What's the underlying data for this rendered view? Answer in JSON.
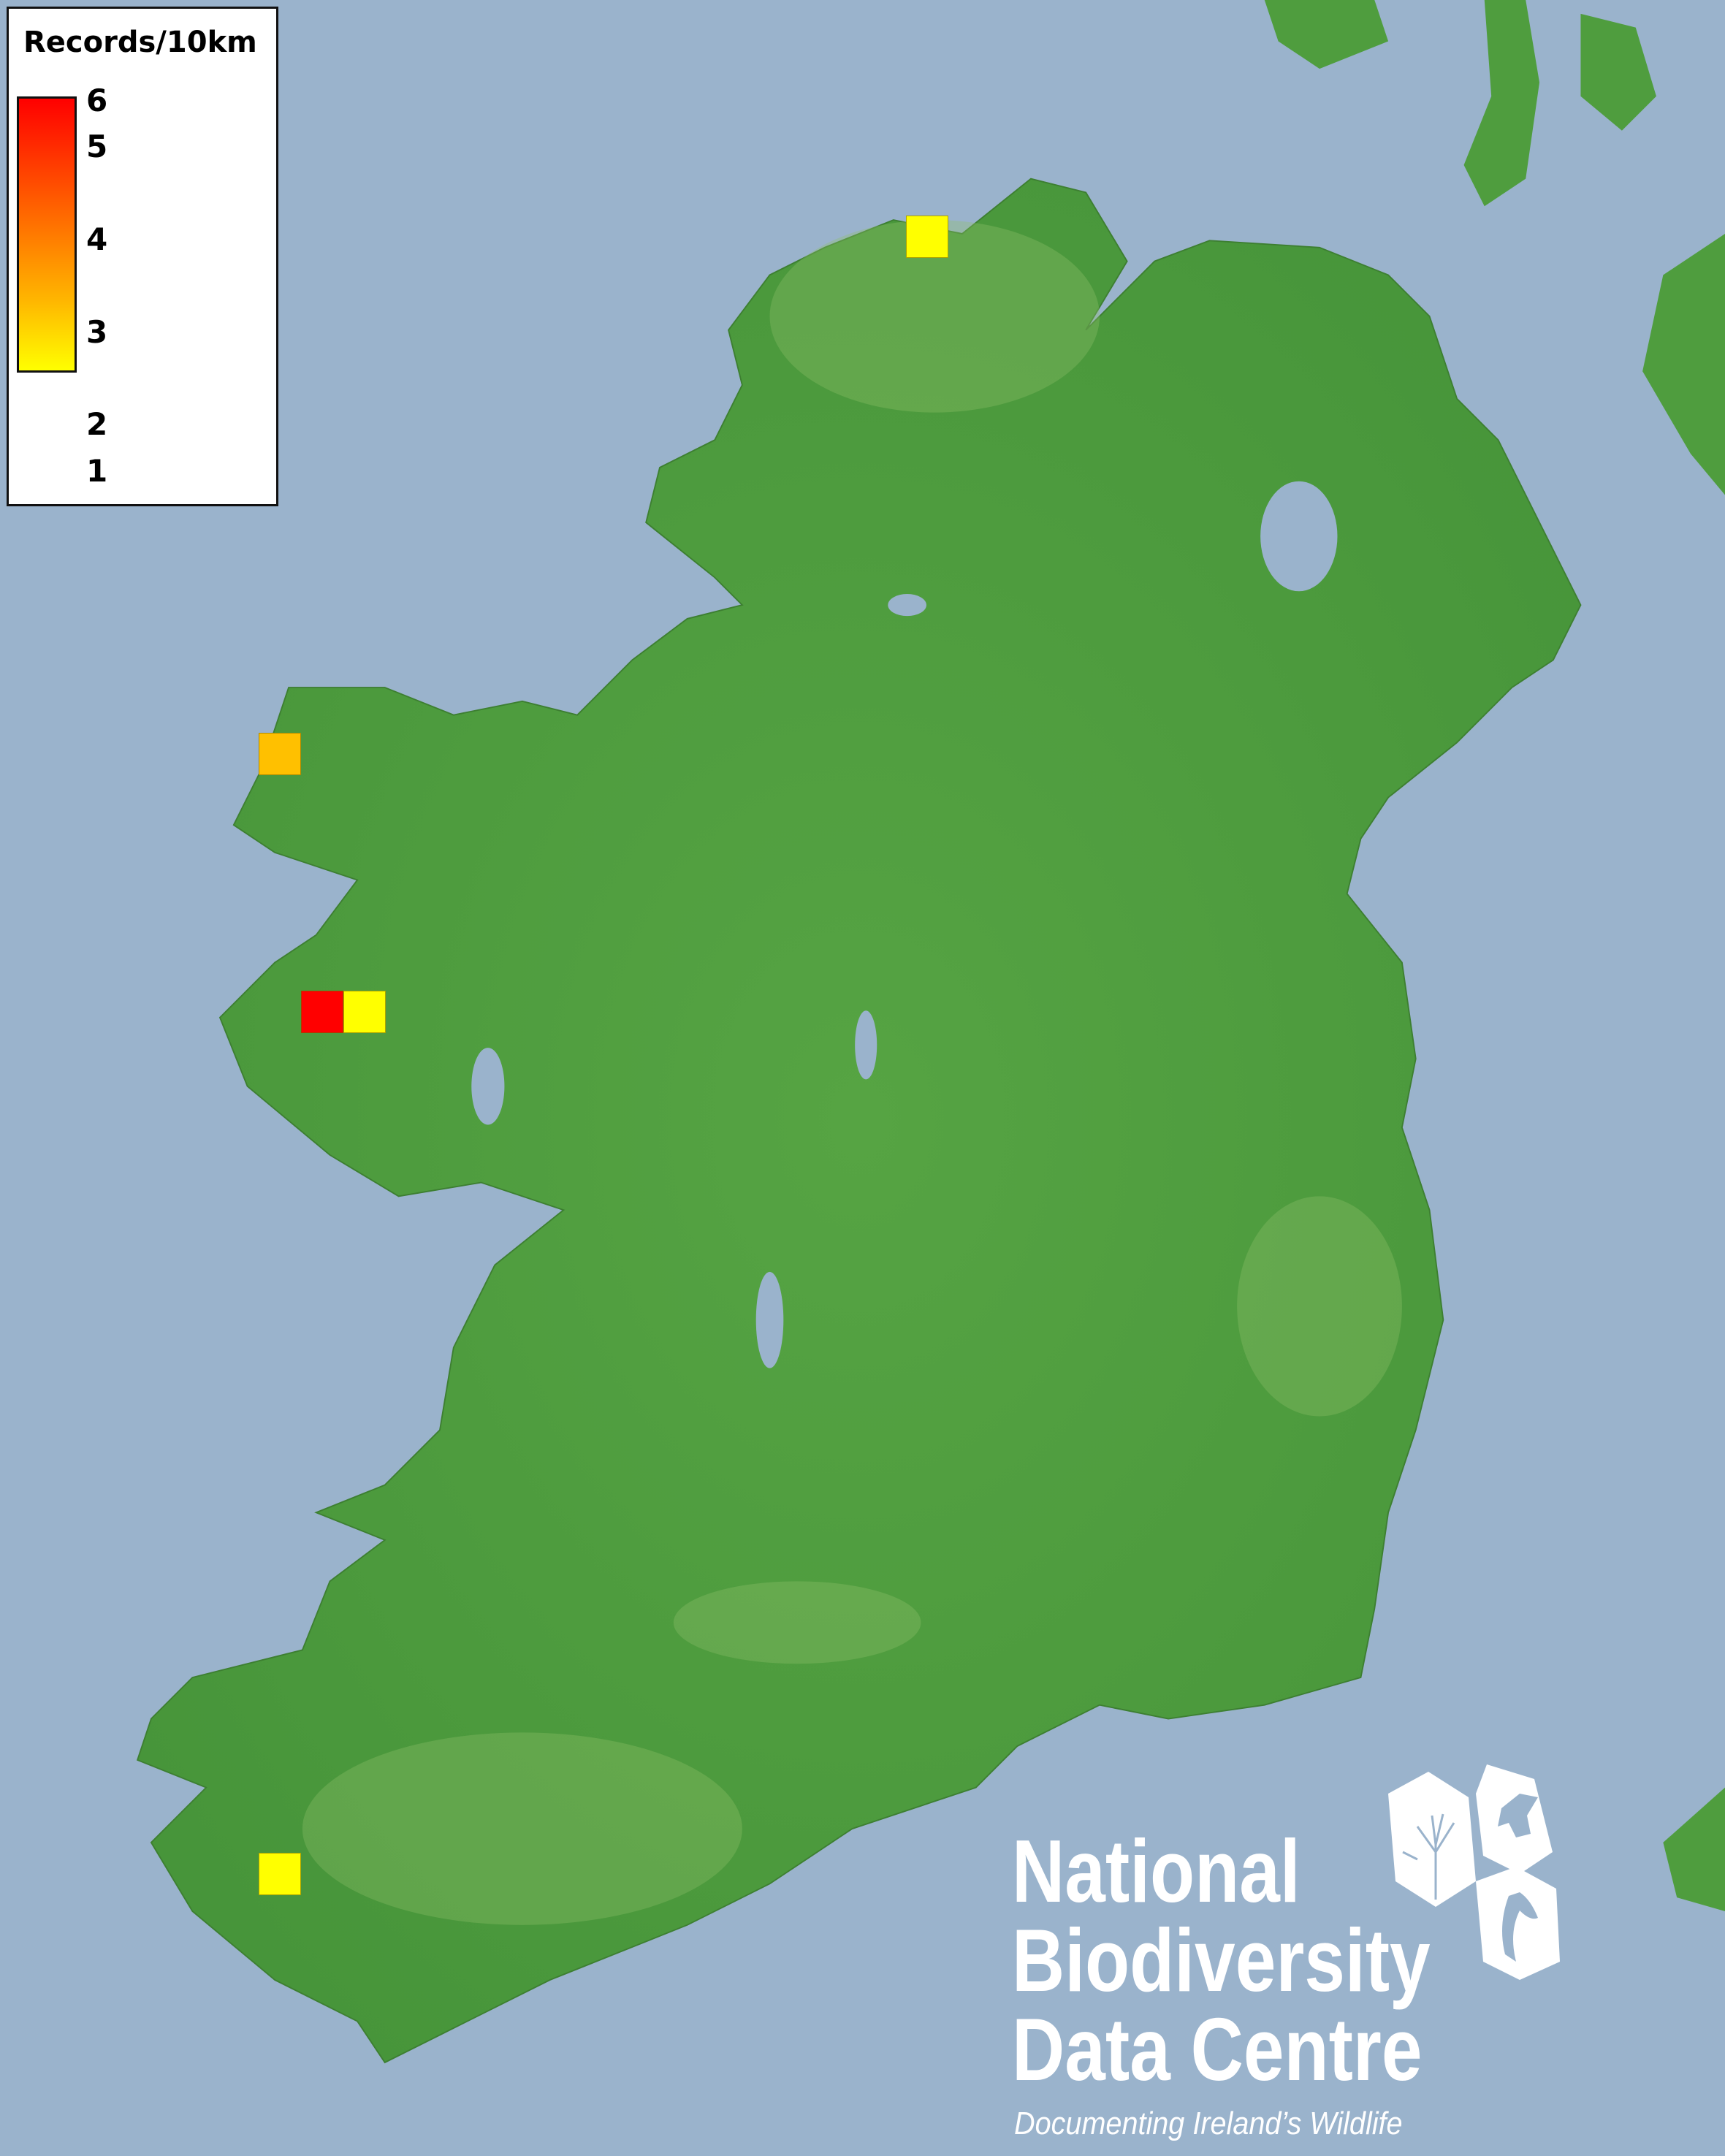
{
  "legend": {
    "title": "Records/10km",
    "ticks": [
      "6",
      "5",
      "4",
      "3",
      "2",
      "1"
    ],
    "color_min": "#ffff00",
    "color_mid": "#ff8c00",
    "color_max": "#ff0000"
  },
  "records": [
    {
      "place": "north Donegal",
      "value": 1,
      "color": "#ffff00"
    },
    {
      "place": "north-west Mayo",
      "value": 3,
      "color": "#ffc000"
    },
    {
      "place": "Clew Bay west",
      "value": 6,
      "color": "#ff0000"
    },
    {
      "place": "Clew Bay",
      "value": 1,
      "color": "#ffff00"
    },
    {
      "place": "south-west Kerry",
      "value": 1,
      "color": "#ffff00"
    }
  ],
  "colors": {
    "sea": "#9ab3cc",
    "land": "#4c9c3c"
  },
  "logo": {
    "line1": "National",
    "line2": "Biodiversity",
    "line3": "Data Centre",
    "tagline": "Documenting Ireland’s Wildlife"
  }
}
